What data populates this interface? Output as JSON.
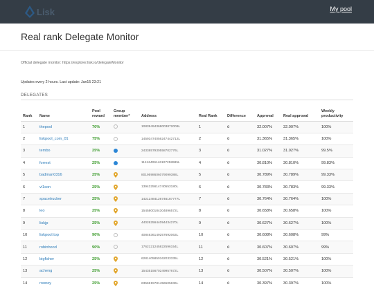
{
  "nav": {
    "brand": "Lisk",
    "my_pool": "My pool"
  },
  "page_title": "Real rank Delegate Monitor",
  "official_text": "Official delegate monitor: https://explorer.lisk.io/delegateMonitor",
  "updates_text": "Updates every 2 hours. Last update: Jan15 23:21",
  "section_title": "DELEGATES",
  "colors": {
    "navbar": "#343d46",
    "link": "#2a7ab8",
    "reward": "#3a9a2a",
    "member_blue": "#2b86d6",
    "pin_gold": "#e2a72e"
  },
  "table": {
    "headers": [
      "Rank",
      "Name",
      "Pool reward",
      "Group member*",
      "Address",
      "Real Rank",
      "Difference",
      "Approval",
      "Real approval",
      "Weekly productivity"
    ],
    "rows": [
      {
        "rank": "1",
        "name": "thepool",
        "reward": "70%",
        "member": "empty-circle-icon",
        "address": "10839494368003872009L",
        "real_rank": "1",
        "diff": "o",
        "approval": "32.007%",
        "real_approval": "32.007%",
        "productivity": "100%"
      },
      {
        "rank": "2",
        "name": "liskpool_com_01",
        "reward": "75%",
        "member": "empty-circle-icon",
        "address": "14593474056247442712L",
        "real_rank": "2",
        "diff": "o",
        "approval": "31.365%",
        "real_approval": "31.365%",
        "productivity": "100%"
      },
      {
        "rank": "3",
        "name": "tembo",
        "reward": "25%",
        "member": "blue-dot-icon",
        "address": "2433857930558702776L",
        "real_rank": "3",
        "diff": "o",
        "approval": "31.027%",
        "real_approval": "31.027%",
        "productivity": "99.5%"
      },
      {
        "rank": "4",
        "name": "forrest",
        "reward": "25%",
        "member": "blue-dot-icon",
        "address": "11416406146107258985L",
        "real_rank": "4",
        "diff": "o",
        "approval": "30.810%",
        "real_approval": "30.810%",
        "productivity": "99.83%"
      },
      {
        "rank": "5",
        "name": "badman0316",
        "reward": "25%",
        "member": "pin-icon",
        "address": "8019598606079099388L",
        "real_rank": "5",
        "diff": "o",
        "approval": "30.789%",
        "real_approval": "30.789%",
        "productivity": "99.33%"
      },
      {
        "rank": "6",
        "name": "vi1son",
        "reward": "25%",
        "member": "pin-icon",
        "address": "1394325614740553180L",
        "real_rank": "6",
        "diff": "o",
        "approval": "30.783%",
        "real_approval": "30.783%",
        "productivity": "99.33%"
      },
      {
        "rank": "7",
        "name": "spacetrucker",
        "reward": "25%",
        "member": "pin-icon",
        "address": "14212484126746187777L",
        "real_rank": "7",
        "diff": "o",
        "approval": "30.764%",
        "real_approval": "30.764%",
        "productivity": "100%"
      },
      {
        "rank": "8",
        "name": "leo",
        "reward": "25%",
        "member": "pin-icon",
        "address": "1545800184304896572L",
        "real_rank": "8",
        "diff": "o",
        "approval": "30.658%",
        "real_approval": "30.658%",
        "productivity": "100%"
      },
      {
        "rank": "9",
        "name": "liskjp",
        "reward": "25%",
        "member": "pin-icon",
        "address": "4402625644094434270L",
        "real_rank": "9",
        "diff": "o",
        "approval": "30.627%",
        "real_approval": "30.627%",
        "productivity": "100%"
      },
      {
        "rank": "10",
        "name": "liskpool.top",
        "reward": "90%",
        "member": "empty-circle-icon",
        "address": "4084636149257692063L",
        "real_rank": "10",
        "diff": "o",
        "approval": "30.608%",
        "real_approval": "30.608%",
        "productivity": "99%"
      },
      {
        "rank": "11",
        "name": "robinhood",
        "reward": "90%",
        "member": "empty-circle-icon",
        "address": "1762121245822596154L",
        "real_rank": "11",
        "diff": "o",
        "approval": "30.607%",
        "real_approval": "30.607%",
        "productivity": "99%"
      },
      {
        "rank": "12",
        "name": "bigfisher",
        "reward": "25%",
        "member": "pin-icon",
        "address": "6281405850162033335L",
        "real_rank": "12",
        "diff": "o",
        "approval": "30.521%",
        "real_approval": "30.521%",
        "productivity": "100%"
      },
      {
        "rank": "13",
        "name": "acheng",
        "reward": "25%",
        "member": "pin-icon",
        "address": "1543515670249957672L",
        "real_rank": "13",
        "diff": "o",
        "approval": "30.507%",
        "real_approval": "30.507%",
        "productivity": "100%"
      },
      {
        "rank": "14",
        "name": "rooney",
        "reward": "25%",
        "member": "pin-icon",
        "address": "6356915781456505636L",
        "real_rank": "14",
        "diff": "o",
        "approval": "30.397%",
        "real_approval": "30.397%",
        "productivity": "100%"
      }
    ]
  }
}
